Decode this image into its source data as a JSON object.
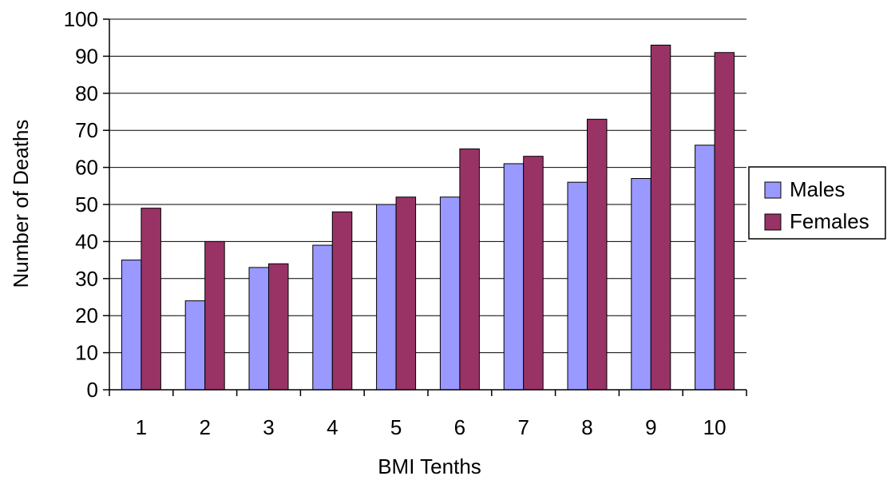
{
  "chart_data": {
    "type": "bar",
    "title": "",
    "xlabel": "BMI Tenths",
    "ylabel": "Number of Deaths",
    "categories": [
      "1",
      "2",
      "3",
      "4",
      "5",
      "6",
      "7",
      "8",
      "9",
      "10"
    ],
    "series": [
      {
        "name": "Males",
        "values": [
          35,
          24,
          33,
          39,
          50,
          52,
          61,
          56,
          57,
          66
        ],
        "color": "#9999ff"
      },
      {
        "name": "Females",
        "values": [
          49,
          40,
          34,
          48,
          52,
          65,
          63,
          73,
          93,
          91
        ],
        "color": "#993366"
      }
    ],
    "ylim": [
      0,
      100
    ],
    "yticks": [
      0,
      10,
      20,
      30,
      40,
      50,
      60,
      70,
      80,
      90,
      100
    ],
    "grid": true,
    "legend": "right"
  }
}
